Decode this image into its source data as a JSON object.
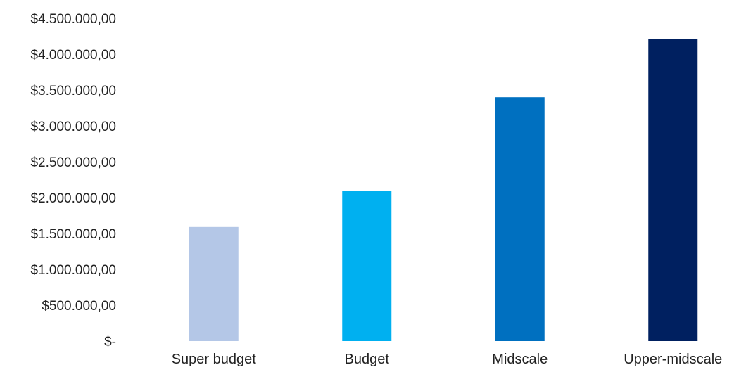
{
  "chart_data": {
    "type": "bar",
    "categories": [
      "Super budget",
      "Budget",
      "Midscale",
      "Upper-midscale"
    ],
    "values": [
      1590000,
      2090000,
      3400000,
      4210000
    ],
    "colors": [
      "#b4c7e7",
      "#00b0f0",
      "#0070c0",
      "#002060"
    ],
    "ylim": [
      0,
      4500000
    ],
    "yticks": [
      0,
      500000,
      1000000,
      1500000,
      2000000,
      2500000,
      3000000,
      3500000,
      4000000,
      4500000
    ],
    "ytick_labels": [
      "$-",
      "$500.000,00",
      "$1.000.000,00",
      "$1.500.000,00",
      "$2.000.000,00",
      "$2.500.000,00",
      "$3.000.000,00",
      "$3.500.000,00",
      "$4.000.000,00",
      "$4.500.000,00"
    ],
    "grid": false,
    "legend": "none"
  }
}
